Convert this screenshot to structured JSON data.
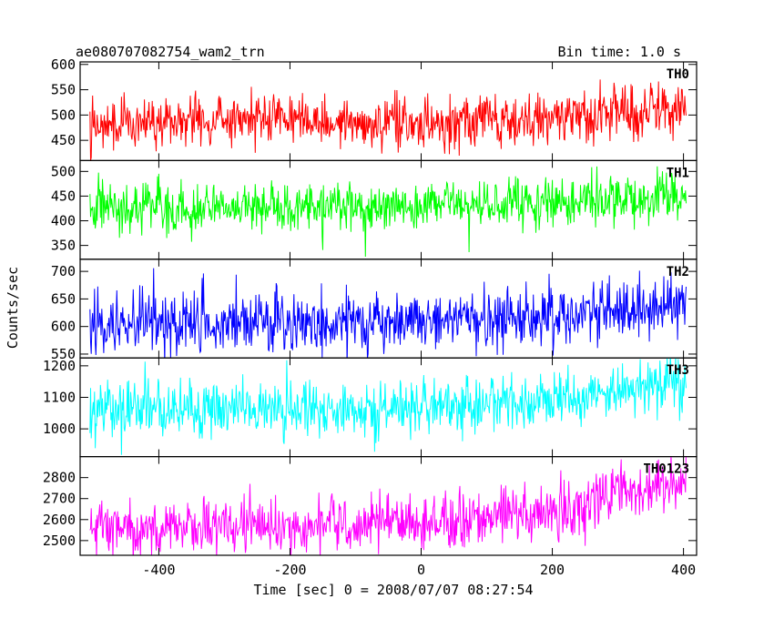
{
  "header": {
    "title": "ae080707082754_wam2_trn",
    "bin_time": "Bin time: 1.0 s"
  },
  "axes": {
    "xlabel": "Time [sec] 0 = 2008/07/07 08:27:54",
    "ylabel": "Counts/sec"
  },
  "chart_data": {
    "type": "line",
    "title": "ae080707082754_wam2_trn",
    "subtitle": "Bin time: 1.0 s",
    "xlabel": "Time [sec] 0 = 2008/07/07 08:27:54",
    "ylabel": "Counts/sec",
    "xlim": [
      -520,
      420
    ],
    "x_ticks": [
      -400,
      -200,
      0,
      200,
      400
    ],
    "x_sampling": {
      "start": -505,
      "end": 404,
      "step": 1
    },
    "grid": false,
    "legend": "per-panel label at top-right",
    "panels": [
      {
        "name": "TH0",
        "color": "#ff0000",
        "ylim": [
          410,
          605
        ],
        "yticks": [
          450,
          500,
          550,
          600
        ],
        "trend": [
          [
            -505,
            480
          ],
          [
            -350,
            485
          ],
          [
            -260,
            495
          ],
          [
            -100,
            485
          ],
          [
            0,
            482
          ],
          [
            150,
            490
          ],
          [
            300,
            505
          ],
          [
            404,
            518
          ]
        ],
        "noise": 25
      },
      {
        "name": "TH1",
        "color": "#00ff00",
        "ylim": [
          322,
          522
        ],
        "yticks": [
          350,
          400,
          450,
          500
        ],
        "trend": [
          [
            -505,
            428
          ],
          [
            -200,
            428
          ],
          [
            0,
            430
          ],
          [
            200,
            435
          ],
          [
            404,
            450
          ]
        ],
        "noise": 25
      },
      {
        "name": "TH2",
        "color": "#0000ff",
        "ylim": [
          543,
          722
        ],
        "yticks": [
          550,
          600,
          650,
          700
        ],
        "trend": [
          [
            -505,
            605
          ],
          [
            -200,
            607
          ],
          [
            0,
            608
          ],
          [
            200,
            618
          ],
          [
            404,
            642
          ]
        ],
        "noise": 28
      },
      {
        "name": "TH3",
        "color": "#00ffff",
        "ylim": [
          912,
          1225
        ],
        "yticks": [
          1000,
          1100,
          1200
        ],
        "trend": [
          [
            -505,
            1055
          ],
          [
            -200,
            1055
          ],
          [
            0,
            1065
          ],
          [
            200,
            1090
          ],
          [
            404,
            1145
          ]
        ],
        "noise": 45
      },
      {
        "name": "TH0123",
        "color": "#ff00ff",
        "ylim": [
          2430,
          2900
        ],
        "yticks": [
          2500,
          2600,
          2700,
          2800
        ],
        "trend": [
          [
            -505,
            2565
          ],
          [
            -200,
            2570
          ],
          [
            0,
            2590
          ],
          [
            200,
            2640
          ],
          [
            300,
            2720
          ],
          [
            404,
            2785
          ]
        ],
        "noise": 65
      }
    ]
  }
}
